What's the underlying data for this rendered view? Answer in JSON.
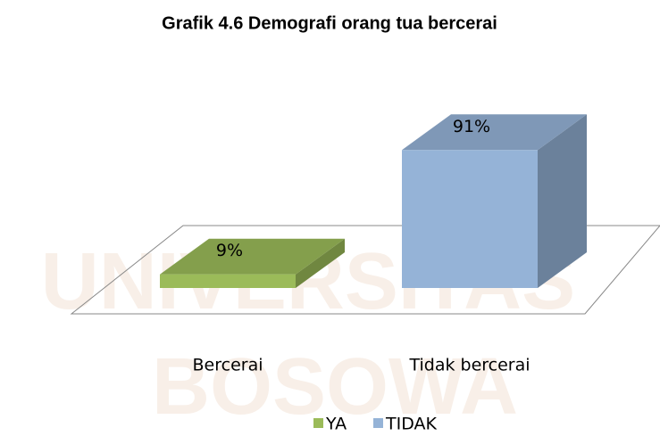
{
  "watermark": [
    "UNIVERSITAS",
    "BOSOWA"
  ],
  "chart_data": {
    "type": "bar3d",
    "title": "Grafik 4.6 Demografi orang tua bercerai",
    "categories": [
      "Bercerai",
      "Tidak bercerai"
    ],
    "series": [
      {
        "name": "YA",
        "color": "#9bbb59",
        "values": [
          9,
          null
        ],
        "value_labels": [
          "9%",
          null
        ]
      },
      {
        "name": "TIDAK",
        "color": "#95b3d7",
        "values": [
          null,
          91
        ],
        "value_labels": [
          null,
          "91%"
        ]
      }
    ]
  }
}
